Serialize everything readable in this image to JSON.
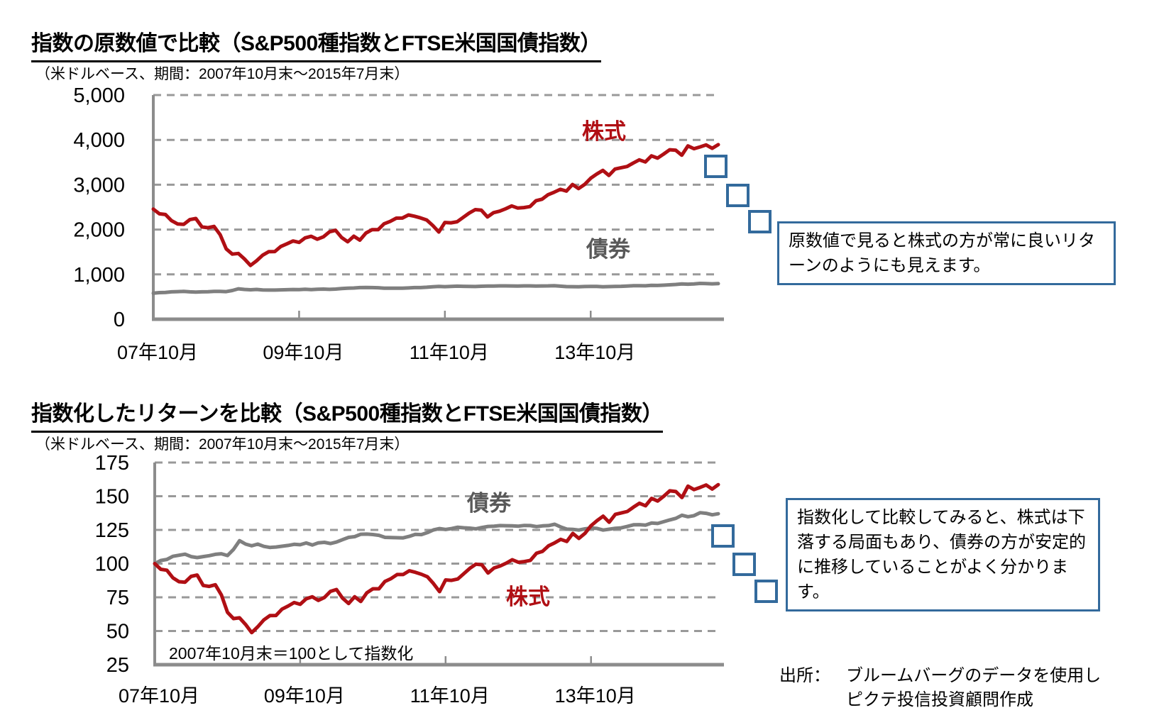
{
  "callouts": [
    {
      "text": "原数値で見ると株式の方が常に良いリターンのようにも見えます。"
    },
    {
      "text": "指数化して比較してみると、株式は下落する局面もあり、債券の方が安定的に推移していることがよく分かります。"
    }
  ],
  "source": {
    "prefix": "出所：",
    "line1": "ブルームバーグのデータを使用し",
    "line2": "ピクテ投信投資顧問作成"
  },
  "chart_data": [
    {
      "type": "line",
      "title": "指数の原数値で比較（S&P500種指数とFTSE米国国債指数）",
      "subtitle": "（米ドルベース、期間：2007年10月末～2015年7月末）",
      "x_range": [
        "2007-10",
        "2015-07"
      ],
      "x_frequency": "monthly",
      "x_ticks": {
        "labels": [
          "07年10月",
          "09年10月",
          "11年10月",
          "13年10月"
        ],
        "months": [
          0,
          24,
          48,
          72
        ]
      },
      "y_axis": {
        "min": 0,
        "max": 5000,
        "tick_values": [
          0,
          1000,
          2000,
          3000,
          4000,
          5000
        ],
        "tick_labels": [
          "0",
          "1,000",
          "2,000",
          "3,000",
          "4,000",
          "5,000"
        ]
      },
      "grid": "horizontal-dashed",
      "legend": "inline-labels",
      "series": [
        {
          "id": "stocks",
          "name": "株式",
          "color": "#B00F14",
          "values": [
            2455,
            2352,
            2335,
            2198,
            2125,
            2116,
            2221,
            2247,
            2058,
            2041,
            2070,
            1885,
            1569,
            1453,
            1467,
            1345,
            1199,
            1304,
            1429,
            1507,
            1509,
            1624,
            1682,
            1745,
            1713,
            1815,
            1850,
            1785,
            1838,
            1950,
            1983,
            1823,
            1728,
            1851,
            1765,
            1923,
            1997,
            1997,
            2130,
            2182,
            2255,
            2257,
            2326,
            2297,
            2260,
            2214,
            2092,
            1944,
            2158,
            2151,
            2174,
            2271,
            2368,
            2445,
            2432,
            2282,
            2377,
            2410,
            2463,
            2527,
            2480,
            2491,
            2513,
            2644,
            2678,
            2778,
            2834,
            2897,
            2858,
            3005,
            2915,
            3007,
            3146,
            3239,
            3320,
            3208,
            3350,
            3379,
            3406,
            3484,
            3555,
            3508,
            3644,
            3593,
            3683,
            3780,
            3769,
            3658,
            3866,
            3804,
            3843,
            3887,
            3812,
            3894
          ]
        },
        {
          "id": "bonds",
          "name": "債券",
          "color": "#7F7F7F",
          "values": [
            580,
            593,
            598,
            611,
            616,
            621,
            610,
            606,
            610,
            614,
            620,
            622,
            615,
            641,
            679,
            664,
            657,
            664,
            654,
            650,
            651,
            655,
            658,
            663,
            661,
            669,
            660,
            669,
            672,
            666,
            673,
            683,
            693,
            696,
            706,
            707,
            705,
            702,
            693,
            692,
            691,
            691,
            697,
            706,
            705,
            713,
            725,
            731,
            727,
            731,
            737,
            734,
            732,
            730,
            735,
            740,
            741,
            744,
            743,
            742,
            741,
            744,
            744,
            739,
            742,
            744,
            749,
            738,
            728,
            727,
            724,
            730,
            733,
            731,
            724,
            728,
            732,
            734,
            740,
            747,
            748,
            746,
            755,
            753,
            760,
            768,
            775,
            788,
            782,
            786,
            799,
            796,
            790,
            795
          ]
        }
      ]
    },
    {
      "type": "line",
      "title": "指数化したリターンを比較（S&P500種指数とFTSE米国国債指数）",
      "subtitle": "（米ドルベース、期間：2007年10月末～2015年7月末）",
      "note": "2007年10月末＝100として指数化",
      "x_range": [
        "2007-10",
        "2015-07"
      ],
      "x_frequency": "monthly",
      "x_ticks": {
        "labels": [
          "07年10月",
          "09年10月",
          "11年10月",
          "13年10月"
        ],
        "months": [
          0,
          24,
          48,
          72
        ]
      },
      "y_axis": {
        "min": 25,
        "max": 175,
        "tick_values": [
          25,
          50,
          75,
          100,
          125,
          150,
          175
        ],
        "tick_labels": [
          "25",
          "50",
          "75",
          "100",
          "125",
          "150",
          "175"
        ]
      },
      "grid": "horizontal-dashed",
      "legend": "inline-labels",
      "series": [
        {
          "id": "stocks",
          "name": "株式",
          "color": "#B00F14",
          "values": [
            100,
            95.8,
            95.1,
            89.5,
            86.6,
            86.2,
            90.5,
            91.5,
            83.8,
            83.1,
            84.3,
            76.8,
            63.9,
            59.2,
            59.8,
            54.8,
            48.8,
            53.1,
            58.2,
            61.4,
            61.5,
            66.2,
            68.5,
            71.1,
            69.8,
            73.9,
            75.4,
            72.7,
            74.9,
            79.4,
            80.8,
            74.3,
            70.4,
            75.4,
            71.9,
            78.3,
            81.3,
            81.3,
            86.8,
            88.9,
            91.9,
            91.9,
            94.7,
            93.6,
            92.1,
            90.2,
            85.2,
            79.2,
            87.9,
            87.6,
            88.6,
            92.5,
            96.5,
            99.6,
            99.1,
            93.0,
            96.8,
            98.2,
            100.3,
            102.9,
            101.0,
            101.5,
            102.4,
            107.7,
            109.1,
            113.2,
            115.4,
            118.0,
            116.4,
            122.4,
            118.7,
            122.5,
            128.1,
            131.9,
            135.2,
            130.7,
            136.5,
            137.6,
            138.7,
            141.9,
            144.8,
            142.9,
            148.4,
            146.4,
            150.0,
            154.0,
            153.5,
            149.0,
            157.5,
            154.9,
            156.5,
            158.3,
            155.3,
            158.6
          ]
        },
        {
          "id": "bonds",
          "name": "債券",
          "color": "#7F7F7F",
          "values": [
            100,
            102.3,
            103.1,
            105.4,
            106.2,
            107.0,
            105.2,
            104.5,
            105.2,
            105.9,
            106.9,
            107.3,
            106.0,
            110.5,
            117.0,
            114.5,
            113.2,
            114.5,
            112.8,
            112.0,
            112.3,
            112.9,
            113.5,
            114.3,
            114.0,
            115.3,
            113.8,
            115.4,
            115.8,
            114.9,
            116.0,
            117.8,
            119.5,
            120.0,
            121.8,
            121.9,
            121.6,
            121.0,
            119.5,
            119.3,
            119.2,
            119.1,
            120.2,
            121.7,
            121.5,
            123.0,
            125.0,
            126.0,
            125.3,
            126.0,
            127.0,
            126.6,
            126.3,
            125.8,
            126.8,
            127.6,
            127.8,
            128.2,
            128.1,
            128.0,
            127.8,
            128.3,
            128.2,
            127.4,
            128.0,
            128.2,
            129.2,
            127.2,
            125.6,
            125.4,
            124.9,
            125.8,
            126.4,
            126.1,
            124.9,
            125.5,
            126.2,
            126.5,
            127.6,
            128.8,
            128.9,
            128.6,
            130.1,
            129.8,
            131.1,
            132.4,
            133.6,
            135.9,
            134.8,
            135.6,
            137.8,
            137.3,
            136.2,
            137.0
          ]
        }
      ]
    }
  ]
}
